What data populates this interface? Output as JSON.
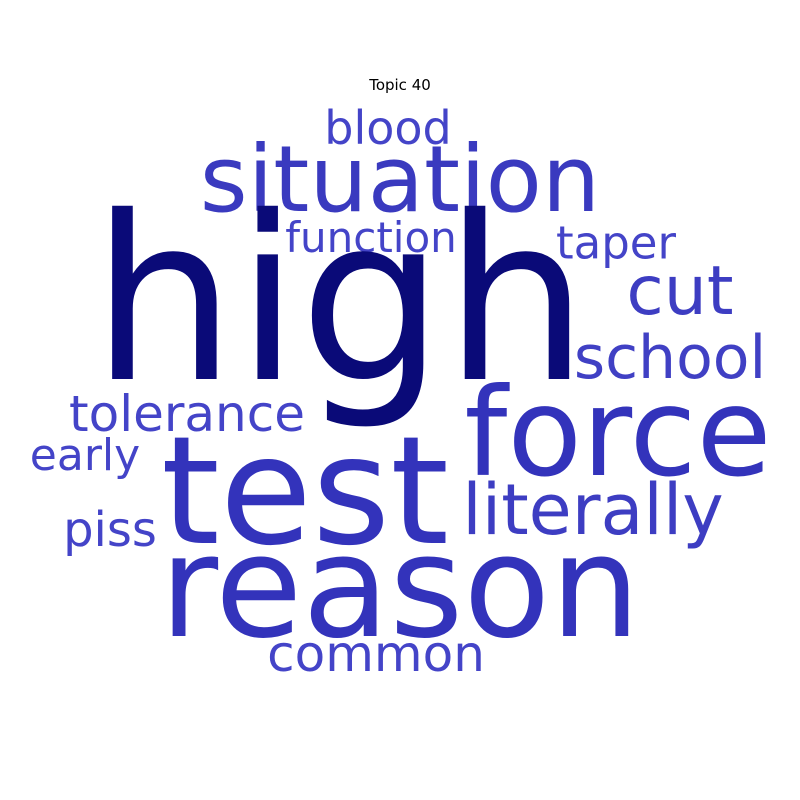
{
  "title": "Topic 40",
  "colors": {
    "dark": "#0a0a78",
    "medium": "#3333bb",
    "light": "#4444c8",
    "background": "#ffffff",
    "title": "#000000"
  },
  "words": [
    {
      "key": "high",
      "text": "high",
      "color": "#0a0a78"
    },
    {
      "key": "test",
      "text": "test",
      "color": "#3333bb"
    },
    {
      "key": "reason",
      "text": "reason",
      "color": "#3333bb"
    },
    {
      "key": "force",
      "text": "force",
      "color": "#3333bb"
    },
    {
      "key": "situation",
      "text": "situation",
      "color": "#3a3abf"
    },
    {
      "key": "literally",
      "text": "literally",
      "color": "#3d3dc2"
    },
    {
      "key": "cut",
      "text": "cut",
      "color": "#3d3dc2"
    },
    {
      "key": "school",
      "text": "school",
      "color": "#4040c4"
    },
    {
      "key": "tolerance",
      "text": "tolerance",
      "color": "#4444c8"
    },
    {
      "key": "common",
      "text": "common",
      "color": "#4444c8"
    },
    {
      "key": "blood",
      "text": "blood",
      "color": "#4444c8"
    },
    {
      "key": "taper",
      "text": "taper",
      "color": "#4444c8"
    },
    {
      "key": "function",
      "text": "function",
      "color": "#4444c8"
    },
    {
      "key": "early",
      "text": "early",
      "color": "#4444c8"
    },
    {
      "key": "piss",
      "text": "piss",
      "color": "#4444c8"
    }
  ]
}
